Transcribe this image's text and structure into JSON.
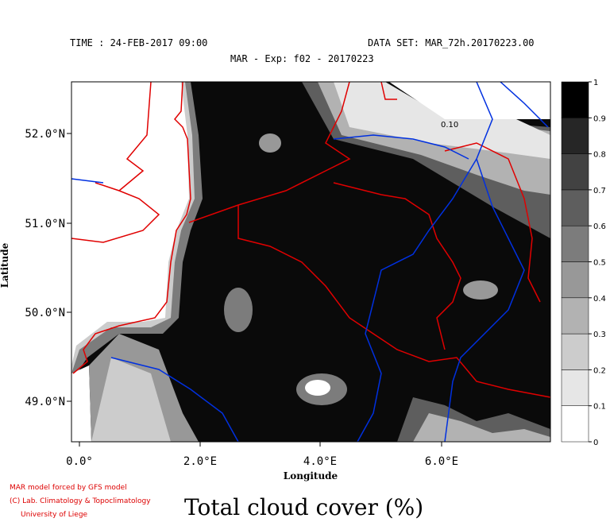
{
  "header": {
    "time": "TIME : 24-FEB-2017 09:00",
    "dataset": "DATA SET: MAR_72h.20170223.00",
    "experiment": "MAR - Exp: f02 - 20170223"
  },
  "map": {
    "x_axis_label": "Longitude",
    "y_axis_label": "Latitude",
    "x_tick_labels": [
      "0.0°",
      "2.0°E",
      "4.0°E",
      "6.0°E"
    ],
    "y_tick_labels": [
      "52.0°N",
      "51.0°N",
      "50.0°N",
      "49.0°N"
    ],
    "contour_label": "0.10"
  },
  "colorbar": {
    "levels": [
      0,
      0.1,
      0.2,
      0.3,
      0.4,
      0.5,
      0.6,
      0.7,
      0.8,
      0.9,
      1
    ],
    "colors": [
      "#ffffff",
      "#e6e6e6",
      "#cccccc",
      "#b2b2b2",
      "#989898",
      "#7c7c7c",
      "#5e5e5e",
      "#424242",
      "#262626",
      "#000000"
    ]
  },
  "footer": {
    "credit1": "MAR model forced by GFS model",
    "credit2": "(C) Lab. Climatology & Topoclimatology",
    "credit3": "University of Liege",
    "title": "Total cloud cover (%)"
  }
}
